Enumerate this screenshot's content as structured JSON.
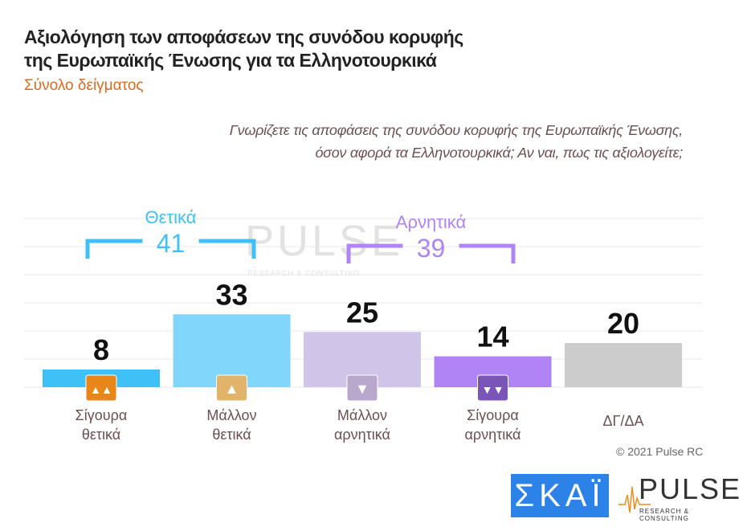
{
  "title_lines": [
    "Αξιολόγηση των αποφάσεων της συνόδου κορυφής",
    "της Ευρωπαϊκής Ένωσης για τα Ελληνοτουρκικά"
  ],
  "subtitle": "Σύνολο δείγματος",
  "question_lines": [
    "Γνωρίζετε τις αποφάσεις της συνόδου κορυφής της Ευρωπαϊκής Ένωσης,",
    "όσον αφορά τα Ελληνοτουρκικά; Αν ναι, πως τις αξιολογείτε;"
  ],
  "copyright": "© 2021 Pulse RC",
  "logos": {
    "skai": "ΣΚΑΪ",
    "pulse": "PULSE",
    "pulse_sub": "RESEARCH & CONSULTING",
    "watermark": "PULSE"
  },
  "chart_data": {
    "type": "bar",
    "categories": [
      [
        "Σίγουρα",
        "θετικά"
      ],
      [
        "Μάλλον",
        "θετικά"
      ],
      [
        "Μάλλον",
        "αρνητικά"
      ],
      [
        "Σίγουρα",
        "αρνητικά"
      ],
      [
        "ΔΓ/ΔΑ"
      ]
    ],
    "values": [
      8,
      33,
      25,
      14,
      20
    ],
    "colors": [
      "#3fc1f7",
      "#80d6fb",
      "#d0c4e8",
      "#b084f5",
      "#cccccc"
    ],
    "icons": [
      "double-thumbs-up-icon",
      "thumbs-up-icon",
      "thumbs-down-icon",
      "double-thumbs-down-icon",
      null
    ],
    "icon_colors": [
      "#e8861a",
      "#e2b46a",
      "#b8a8cc",
      "#7a55b8",
      null
    ],
    "groups": [
      {
        "label": "Θετικά",
        "value": "41",
        "color": "#3fc1f7",
        "span": [
          0,
          1
        ]
      },
      {
        "label": "Αρνητικά",
        "value": "39",
        "color": "#b084f5",
        "span": [
          2,
          3
        ]
      }
    ],
    "ylim": [
      0,
      80
    ],
    "grid": true
  }
}
